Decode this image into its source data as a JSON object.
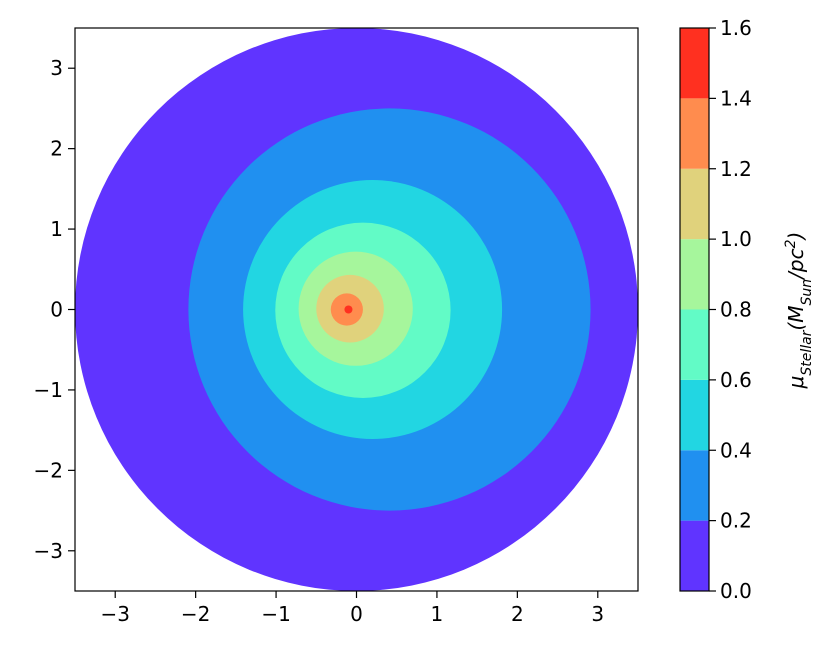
{
  "chart_data": {
    "type": "contour",
    "xlim": [
      -3.5,
      3.5
    ],
    "ylim": [
      -3.5,
      3.5
    ],
    "xticks": [
      {
        "value": -3,
        "label": "−3"
      },
      {
        "value": -2,
        "label": "−2"
      },
      {
        "value": -1,
        "label": "−1"
      },
      0,
      1,
      2,
      3
    ],
    "yticks": [
      {
        "value": -3,
        "label": "−3"
      },
      {
        "value": -2,
        "label": "−2"
      },
      {
        "value": -1,
        "label": "−1"
      },
      0,
      1,
      2,
      3
    ],
    "colorbar_ticks": [
      {
        "value": 0,
        "label": "0.0"
      },
      {
        "value": 0.2,
        "label": "0.2"
      },
      {
        "value": 0.4,
        "label": "0.4"
      },
      {
        "value": 0.6,
        "label": "0.6"
      },
      {
        "value": 0.8,
        "label": "0.8"
      },
      {
        "value": 1.0,
        "label": "1.0"
      },
      {
        "value": 1.2,
        "label": "1.2"
      },
      {
        "value": 1.4,
        "label": "1.4"
      },
      {
        "value": 1.6,
        "label": "1.6"
      }
    ],
    "colors": [
      "#6034ff",
      "#2090f0",
      "#22d6e2",
      "#62fbc6",
      "#a6f69c",
      "#e0d27c",
      "#ff8c4e",
      "#ff3020"
    ],
    "regions": [
      {
        "cx": 0,
        "cy": 0,
        "r": 3.5
      },
      {
        "cx": 0.41,
        "cy": 0,
        "r": 2.5
      },
      {
        "cx": 0.2,
        "cy": 0,
        "r": 1.61
      },
      {
        "cx": 0.08,
        "cy": -0.01,
        "r": 1.09
      },
      {
        "cx": -0.01,
        "cy": 0.01,
        "r": 0.71
      },
      {
        "cx": -0.08,
        "cy": 0.01,
        "r": 0.42
      },
      {
        "cx": -0.12,
        "cy": 0.0,
        "r": 0.2
      },
      {
        "cx": -0.1,
        "cy": 0.0,
        "r": 0.05
      }
    ],
    "colorbar_label": [
      "μ",
      "Stellar",
      "(M",
      "Sun",
      "/pc",
      "2",
      ")"
    ]
  }
}
